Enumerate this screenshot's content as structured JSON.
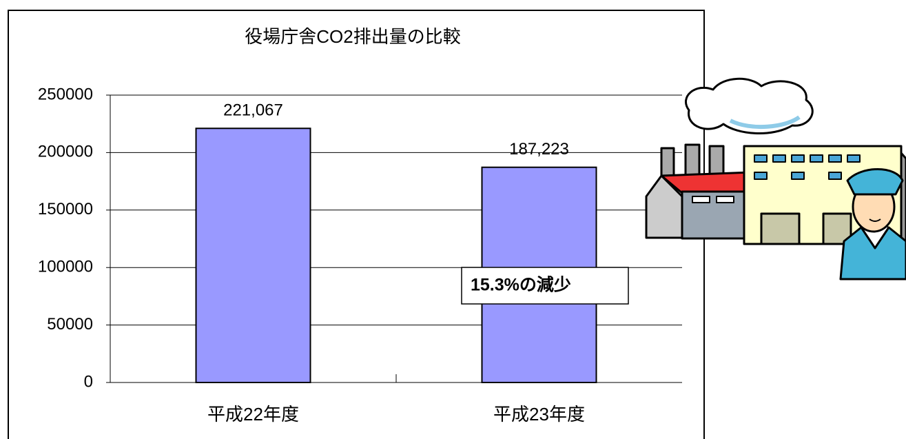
{
  "chart_data": {
    "type": "bar",
    "title": "役場庁舎CO2排出量の比較",
    "categories": [
      "平成22年度",
      "平成23年度"
    ],
    "values": [
      221067,
      187223
    ],
    "value_labels": [
      "221,067",
      "187,223"
    ],
    "color": "#9999ff",
    "ylim": [
      0,
      250000
    ],
    "yticks": [
      0,
      50000,
      100000,
      150000,
      200000,
      250000
    ],
    "grid": true,
    "annotation": "15.3%の減少"
  }
}
